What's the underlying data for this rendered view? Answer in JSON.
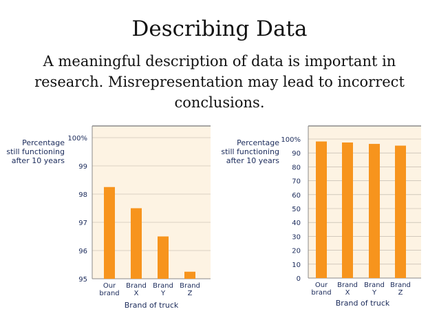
{
  "slide": {
    "title": "Describing Data",
    "subtitle": "A meaningful description of data is important in research. Misrepresentation may lead to incorrect conclusions."
  },
  "colors": {
    "bar": "#f7941d",
    "plot_background": "#fdf3e3",
    "axis_line": "#8a8a8a",
    "text": "#1a2a5a"
  },
  "chart_data": [
    {
      "type": "bar",
      "ylabel": [
        "Percentage",
        "still functioning",
        "after 10 years"
      ],
      "xlabel": "Brand of truck",
      "categories": [
        [
          "Our",
          "brand"
        ],
        [
          "Brand",
          "X"
        ],
        [
          "Brand",
          "Y"
        ],
        [
          "Brand",
          "Z"
        ]
      ],
      "values": [
        98.25,
        97.5,
        96.5,
        95.25
      ],
      "ylim": [
        95,
        100
      ],
      "yticks": [
        "95",
        "96",
        "97",
        "98",
        "99",
        "100%"
      ],
      "grid": false
    },
    {
      "type": "bar",
      "ylabel": [
        "Percentage",
        "still functioning",
        "after 10 years"
      ],
      "xlabel": "Brand of truck",
      "categories": [
        [
          "Our",
          "brand"
        ],
        [
          "Brand",
          "X"
        ],
        [
          "Brand",
          "Y"
        ],
        [
          "Brand",
          "Z"
        ]
      ],
      "values": [
        98.25,
        97.5,
        96.5,
        95.25
      ],
      "ylim": [
        0,
        100
      ],
      "yticks": [
        "0",
        "10",
        "20",
        "30",
        "40",
        "50",
        "60",
        "70",
        "80",
        "90",
        "100%"
      ],
      "grid": false
    }
  ]
}
